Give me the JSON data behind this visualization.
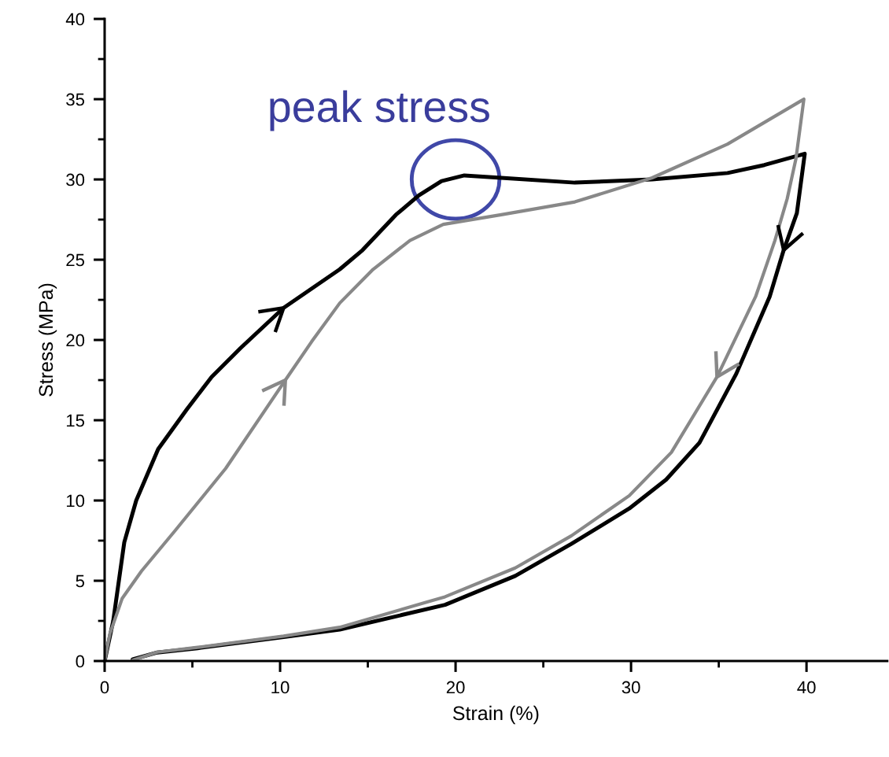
{
  "chart_data": {
    "type": "line",
    "xlabel": "Strain (%)",
    "ylabel": "Stress (MPa)",
    "xlim": [
      0,
      44.6
    ],
    "ylim": [
      0,
      40
    ],
    "xticks": [
      0,
      {
        "value": 5,
        "label": null
      },
      10,
      {
        "value": 15,
        "label": null
      },
      20,
      {
        "value": 25,
        "label": null
      },
      30,
      {
        "value": 35,
        "label": null
      },
      40
    ],
    "yticks": [
      0,
      {
        "value": 2.5,
        "label": null
      },
      5,
      {
        "value": 7.5,
        "label": null
      },
      10,
      {
        "value": 12.5,
        "label": null
      },
      15,
      {
        "value": 17.5,
        "label": null
      },
      20,
      {
        "value": 22.5,
        "label": null
      },
      25,
      {
        "value": 27.5,
        "label": null
      },
      30,
      {
        "value": 32.5,
        "label": null
      },
      35,
      {
        "value": 37.5,
        "label": null
      },
      40
    ],
    "grid": false,
    "marker": "none",
    "line_style": "solid",
    "annotations": [
      {
        "text": "peak stress",
        "x": 20,
        "y": 30
      }
    ],
    "series": [
      {
        "color": "#000000",
        "x": [
          0,
          0.49,
          1.12,
          1.8,
          3.05,
          4.7,
          6.1,
          7.75,
          10.2,
          11.8,
          13.4,
          14.7,
          16.6,
          17.9,
          19.2,
          20.5,
          22.6,
          26.8,
          31.2,
          35.5,
          37.6,
          39.9,
          39.45,
          38.7,
          37.9,
          36.0,
          33.9,
          32.0,
          29.9,
          26.6,
          23.4,
          19.4,
          13.4,
          10.2,
          5.3,
          3.0,
          1.6
        ],
        "values": [
          0,
          2.5,
          7.4,
          10,
          13.2,
          15.7,
          17.7,
          19.5,
          22.0,
          23.2,
          24.4,
          25.6,
          27.8,
          29.0,
          29.9,
          30.25,
          30.1,
          29.8,
          30.0,
          30.4,
          30.9,
          31.6,
          27.9,
          25.6,
          22.7,
          17.9,
          13.6,
          11.3,
          9.5,
          7.3,
          5.3,
          3.5,
          1.96,
          1.5,
          0.8,
          0.53,
          0.1
        ]
      },
      {
        "color": "#888888",
        "x": [
          0,
          0.3,
          1.0,
          2.1,
          4.0,
          6.9,
          10.3,
          11.8,
          13.4,
          15.3,
          17.4,
          19.3,
          22.6,
          26.8,
          31.2,
          35.5,
          39.85,
          39.4,
          38.9,
          38.2,
          37.1,
          34.9,
          32.3,
          29.9,
          26.6,
          23.4,
          19.4,
          13.4,
          10.2,
          5.3,
          3.0,
          1.6
        ],
        "values": [
          0,
          1.7,
          3.9,
          5.6,
          8.1,
          12.0,
          17.5,
          19.9,
          22.3,
          24.4,
          26.2,
          27.2,
          27.8,
          28.6,
          30.1,
          32.2,
          35.0,
          31.3,
          28.8,
          26.2,
          22.7,
          17.7,
          13.0,
          10.3,
          7.8,
          5.8,
          4.0,
          2.1,
          1.55,
          0.85,
          0.55,
          0.05
        ]
      }
    ]
  }
}
